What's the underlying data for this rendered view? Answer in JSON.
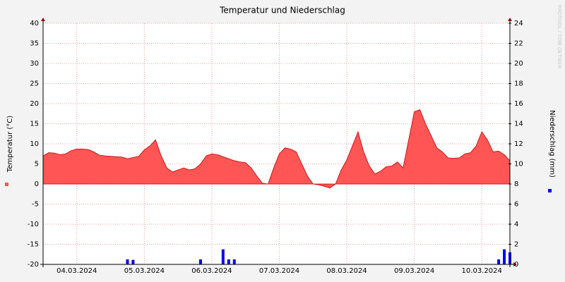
{
  "chart_data": {
    "type": "area",
    "title": "Temperatur und Niederschlag",
    "ylabel": "Temperatur (°C)",
    "y2label": "Niederschlag (mm)",
    "watermark": "RRDTOOL / TOBI OETIKER",
    "categories": [
      null,
      null,
      null,
      null,
      null,
      null,
      "04.03.2024",
      null,
      null,
      null,
      null,
      null,
      null,
      null,
      null,
      null,
      null,
      null,
      "05.03.2024",
      null,
      null,
      null,
      null,
      null,
      null,
      null,
      null,
      null,
      null,
      null,
      "06.03.2024",
      null,
      null,
      null,
      null,
      null,
      null,
      null,
      null,
      null,
      null,
      null,
      "07.03.2024",
      null,
      null,
      null,
      null,
      null,
      null,
      null,
      null,
      null,
      null,
      null,
      "08.03.2024",
      null,
      null,
      null,
      null,
      null,
      null,
      null,
      null,
      null,
      null,
      null,
      "09.03.2024",
      null,
      null,
      null,
      null,
      null,
      null,
      null,
      null,
      null,
      null,
      null,
      "10.03.2024",
      null,
      null,
      null,
      null,
      null
    ],
    "ylim": [
      -20,
      40
    ],
    "yticks": [
      -20,
      -15,
      -10,
      -5,
      0,
      5,
      10,
      15,
      20,
      25,
      30,
      35,
      40
    ],
    "y2lim": [
      0,
      24
    ],
    "y2ticks": [
      0,
      2,
      4,
      6,
      8,
      10,
      12,
      14,
      16,
      18,
      20,
      22,
      24
    ],
    "grid": true,
    "series": [
      {
        "color": "#ff5555",
        "type": "area",
        "values": [
          7.0,
          7.8,
          7.7,
          7.3,
          7.5,
          8.3,
          8.7,
          8.7,
          8.6,
          8.0,
          7.2,
          7.0,
          6.9,
          6.8,
          6.7,
          6.3,
          6.6,
          6.9,
          8.5,
          9.5,
          11.0,
          7.0,
          4.0,
          3.0,
          3.5,
          4.0,
          3.5,
          3.8,
          5.0,
          7.0,
          7.5,
          7.3,
          6.8,
          6.3,
          5.8,
          5.5,
          5.3,
          4.0,
          2.0,
          0.2,
          0.0,
          4.0,
          7.5,
          9.0,
          8.7,
          8.0,
          5.0,
          2.0,
          0.0,
          -0.2,
          -0.6,
          -1.0,
          0.0,
          3.5,
          6.0,
          9.5,
          13.0,
          8.0,
          4.5,
          2.5,
          3.2,
          4.3,
          4.5,
          5.5,
          4.0,
          11.0,
          18.0,
          18.5,
          15.0,
          12.0,
          9.0,
          8.0,
          6.5,
          6.4,
          6.5,
          7.5,
          7.8,
          9.5,
          13.0,
          11.0,
          8.0,
          8.2,
          7.3,
          5.8
        ]
      },
      {
        "color": "#0000ff",
        "type": "bar",
        "axis": "y2",
        "values": [
          0,
          0,
          0,
          0,
          0,
          0,
          0,
          0,
          0,
          0,
          0,
          0,
          0,
          0,
          0,
          0.5,
          0.45,
          0,
          0,
          0,
          0,
          0,
          0,
          0,
          0,
          0,
          0,
          0,
          0.5,
          0,
          0,
          0,
          1.5,
          0.5,
          0.5,
          0,
          0,
          0,
          0,
          0,
          0,
          0,
          0,
          0,
          0,
          0,
          0,
          0,
          0,
          0,
          0,
          0,
          0,
          0,
          0,
          0,
          0,
          0,
          0,
          0,
          0,
          0,
          0,
          0,
          0,
          0,
          0,
          0,
          0,
          0,
          0,
          0,
          0,
          0,
          0,
          0,
          0,
          0,
          0,
          0,
          0,
          0.5,
          1.5,
          1.2
        ]
      }
    ]
  }
}
